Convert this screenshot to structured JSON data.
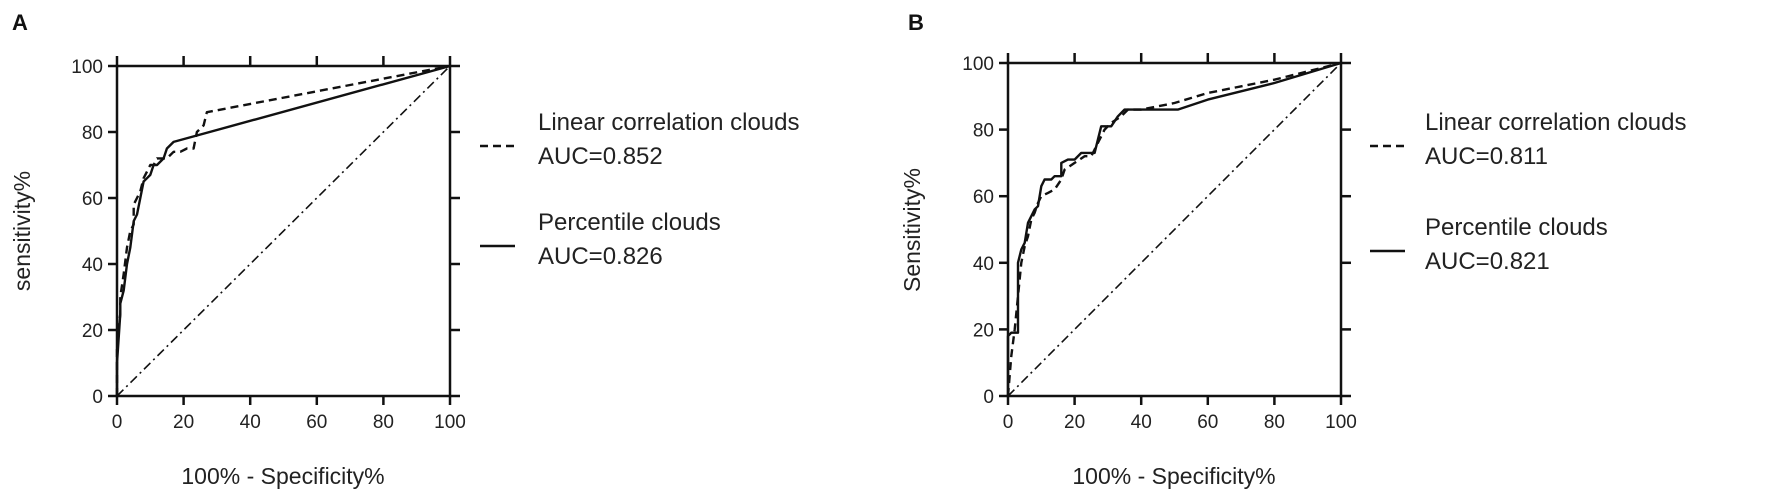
{
  "chart_data": [
    {
      "type": "line",
      "panel": "A",
      "xlabel": "100% - Specificity%",
      "ylabel": "sensitivity%",
      "xlim": [
        0,
        100
      ],
      "ylim": [
        0,
        100
      ],
      "xticks": [
        "0",
        "20",
        "40",
        "60",
        "80",
        "100"
      ],
      "yticks": [
        "0",
        "20",
        "40",
        "60",
        "80",
        "100"
      ],
      "grid": false,
      "legend_position": "right",
      "series": [
        {
          "name": "Linear correlation clouds",
          "auc": "AUC=0.852",
          "style": "dashed",
          "x": [
            0,
            0,
            1,
            1,
            2,
            3,
            4,
            5,
            5,
            6,
            7,
            8,
            9,
            10,
            11,
            12,
            15,
            17,
            19,
            21,
            23,
            24,
            26,
            27,
            100
          ],
          "y": [
            0,
            15,
            25,
            30,
            37,
            45,
            50,
            52,
            58,
            60,
            62,
            66,
            68,
            70,
            70,
            72,
            72,
            74,
            74,
            75,
            75,
            80,
            82,
            86,
            100
          ]
        },
        {
          "name": "Percentile clouds",
          "auc": "AUC=0.826",
          "style": "solid",
          "x": [
            0,
            0,
            1,
            1,
            2,
            3,
            4,
            5,
            6,
            7,
            8,
            9,
            10,
            11,
            12,
            14,
            15,
            17,
            100
          ],
          "y": [
            0,
            10,
            25,
            28,
            32,
            40,
            45,
            53,
            55,
            60,
            65,
            66,
            67,
            70,
            70,
            72,
            75,
            77,
            100
          ]
        }
      ]
    },
    {
      "type": "line",
      "panel": "B",
      "xlabel": "100% - Specificity%",
      "ylabel": "Sensitivity%",
      "xlim": [
        0,
        100
      ],
      "ylim": [
        0,
        100
      ],
      "xticks": [
        "0",
        "20",
        "40",
        "60",
        "80",
        "100"
      ],
      "yticks": [
        "0",
        "20",
        "40",
        "60",
        "80",
        "100"
      ],
      "grid": false,
      "legend_position": "right",
      "series": [
        {
          "name": "Linear correlation clouds",
          "auc": "AUC=0.811",
          "style": "dashed",
          "x": [
            0,
            1,
            2,
            3,
            4,
            5,
            6,
            7,
            8,
            9,
            10,
            12,
            14,
            16,
            17,
            20,
            23,
            25,
            27,
            29,
            31,
            34,
            36,
            40,
            50,
            60,
            80,
            100
          ],
          "y": [
            0,
            12,
            20,
            30,
            40,
            45,
            48,
            53,
            55,
            58,
            60,
            61,
            62,
            65,
            68,
            70,
            72,
            72,
            76,
            80,
            82,
            84,
            86,
            86,
            88,
            91,
            95,
            100
          ]
        },
        {
          "name": "Percentile clouds",
          "auc": "AUC=0.821",
          "style": "solid",
          "x": [
            0,
            0,
            1,
            1,
            3,
            3,
            4,
            5,
            6,
            7,
            8,
            9,
            10,
            11,
            13,
            14,
            16,
            16,
            18,
            20,
            22,
            24,
            26,
            27,
            28,
            30,
            31,
            33,
            35,
            36,
            51,
            60,
            80,
            100
          ],
          "y": [
            0,
            18,
            19,
            19,
            19,
            40,
            44,
            46,
            52,
            54,
            56,
            57,
            63,
            65,
            65,
            66,
            66,
            70,
            71,
            71,
            73,
            73,
            73,
            77,
            81,
            81,
            81,
            84,
            86,
            86,
            86,
            89,
            94,
            100
          ]
        }
      ]
    }
  ]
}
